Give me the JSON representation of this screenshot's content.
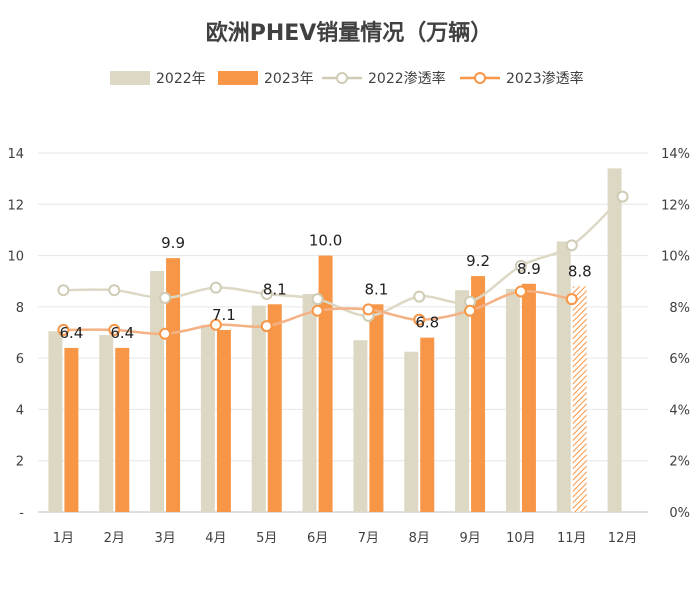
{
  "chart_data": {
    "type": "bar",
    "title": "欧洲PHEV销量情况（万辆）",
    "categories": [
      "1月",
      "2月",
      "3月",
      "4月",
      "5月",
      "6月",
      "7月",
      "8月",
      "9月",
      "10月",
      "11月",
      "12月"
    ],
    "series": [
      {
        "name": "2022年",
        "kind": "bar",
        "axis": "left",
        "color": "#ddd8c4",
        "values": [
          7.05,
          6.9,
          9.4,
          7.3,
          8.05,
          8.5,
          6.7,
          6.25,
          8.65,
          8.7,
          10.55,
          13.4
        ]
      },
      {
        "name": "2023年",
        "kind": "bar",
        "axis": "left",
        "color": "#f79646",
        "values": [
          6.4,
          6.4,
          9.9,
          7.1,
          8.1,
          10.0,
          8.1,
          6.8,
          9.2,
          8.9,
          8.8,
          null
        ],
        "labels": [
          "6.4",
          "6.4",
          "9.9",
          "7.1",
          "8.1",
          "10.0",
          "8.1",
          "6.8",
          "9.2",
          "8.9",
          "8.8",
          ""
        ],
        "hatched_index": 10
      },
      {
        "name": "2022渗透率",
        "kind": "line",
        "axis": "right",
        "color": "#ddd8c4",
        "values": [
          8.65,
          8.65,
          8.35,
          8.75,
          8.5,
          8.3,
          7.65,
          8.4,
          8.2,
          9.6,
          10.4,
          12.3
        ]
      },
      {
        "name": "2023渗透率",
        "kind": "line",
        "axis": "right",
        "color": "#f4b183",
        "values": [
          7.1,
          7.1,
          6.95,
          7.3,
          7.25,
          7.85,
          7.9,
          7.5,
          7.85,
          8.6,
          8.3,
          null
        ]
      }
    ],
    "y_left": {
      "min": 0,
      "max": 14,
      "ticks": [
        "-",
        "2",
        "4",
        "6",
        "8",
        "10",
        "12",
        "14"
      ]
    },
    "y_right": {
      "min": 0,
      "max": 14,
      "ticks": [
        "0%",
        "2%",
        "4%",
        "6%",
        "8%",
        "10%",
        "12%",
        "14%"
      ]
    },
    "grid": true,
    "legend_position": "top"
  }
}
